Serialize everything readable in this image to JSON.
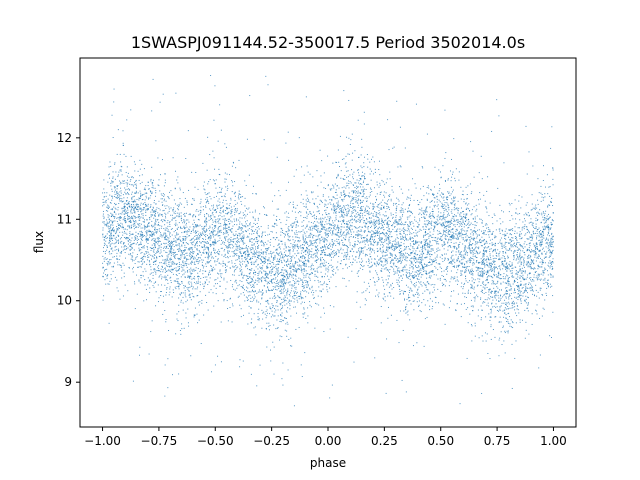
{
  "chart_data": {
    "type": "scatter",
    "title": "1SWASPJ091144.52-350017.5 Period 3502014.0s",
    "xlabel": "phase",
    "ylabel": "flux",
    "xlim": [
      -1.1,
      1.1
    ],
    "ylim": [
      8.45,
      12.98
    ],
    "xticks": [
      -1.0,
      -0.75,
      -0.5,
      -0.25,
      0.0,
      0.25,
      0.5,
      0.75,
      1.0
    ],
    "xtick_labels": [
      "−1.00",
      "−0.75",
      "−0.50",
      "−0.25",
      "0.00",
      "0.25",
      "0.50",
      "0.75",
      "1.00"
    ],
    "yticks": [
      9,
      10,
      11,
      12
    ],
    "ytick_labels": [
      "9",
      "10",
      "11",
      "12"
    ],
    "grid": false,
    "marker_color": "#1f77b4",
    "series": [
      {
        "phase": [
          -1.0,
          -0.95,
          -0.9,
          -0.85,
          -0.8,
          -0.75,
          -0.7,
          -0.65,
          -0.6,
          -0.55,
          -0.5,
          -0.45,
          -0.4,
          -0.35,
          -0.3,
          -0.25,
          -0.2,
          -0.15,
          -0.1,
          -0.05,
          0.0,
          0.05,
          0.1,
          0.15,
          0.2,
          0.25,
          0.3,
          0.35,
          0.4,
          0.45,
          0.5,
          0.55,
          0.6,
          0.65,
          0.7,
          0.75,
          0.8,
          0.85,
          0.9,
          0.95,
          1.0
        ],
        "flux_center": [
          10.8,
          10.95,
          11.05,
          11.0,
          10.85,
          10.75,
          10.7,
          10.6,
          10.55,
          10.7,
          10.8,
          10.85,
          10.7,
          10.55,
          10.45,
          10.35,
          10.3,
          10.4,
          10.55,
          10.7,
          10.8,
          10.95,
          11.05,
          11.0,
          10.85,
          10.75,
          10.7,
          10.6,
          10.55,
          10.7,
          10.8,
          10.85,
          10.7,
          10.55,
          10.45,
          10.35,
          10.3,
          10.4,
          10.55,
          10.7,
          10.8
        ],
        "flux_spread": 0.35,
        "flux_min": 8.65,
        "flux_max": 12.8,
        "n_points": 9000
      }
    ]
  }
}
